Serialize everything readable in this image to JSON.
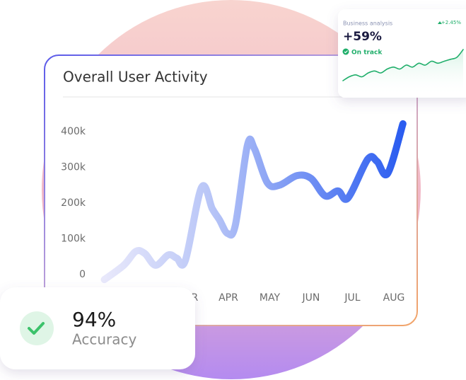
{
  "chart_data": [
    {
      "type": "line",
      "title": "Overall User Activity",
      "x": [
        0,
        0.47,
        0.76,
        0.98,
        1.24,
        1.55,
        1.75,
        1.96,
        2.35,
        2.61,
        2.78,
        2.98,
        3.17,
        3.46,
        3.63,
        3.94,
        4.23,
        4.66,
        5.0,
        5.34,
        5.65,
        5.89,
        6.37,
        6.59,
        6.85,
        7.22
      ],
      "values": [
        -14000,
        26000,
        65000,
        59000,
        26000,
        55000,
        46000,
        40000,
        244000,
        184000,
        154000,
        115000,
        139000,
        362000,
        352000,
        257000,
        250000,
        277000,
        269000,
        220000,
        234000,
        214000,
        323000,
        317000,
        283000,
        422000
      ],
      "color": "#2a5cf0",
      "xlim": [
        0,
        7.25
      ],
      "xticks": [
        {
          "value": 2,
          "label": "MAR"
        },
        {
          "value": 3,
          "label": "APR"
        },
        {
          "value": 4,
          "label": "MAY"
        },
        {
          "value": 5,
          "label": "JUN"
        },
        {
          "value": 6,
          "label": "JUL"
        },
        {
          "value": 7,
          "label": "AUG"
        }
      ],
      "ylim": [
        0,
        400000
      ],
      "yticks": [
        0,
        {
          "value": 100000,
          "label": "100k"
        },
        {
          "value": 200000,
          "label": "200k"
        },
        {
          "value": 300000,
          "label": "300k"
        },
        {
          "value": 400000,
          "label": "400k"
        }
      ],
      "grid": false
    },
    {
      "type": "line",
      "x": [
        0,
        1,
        2,
        3,
        4,
        5,
        6,
        7,
        8,
        9,
        10,
        11,
        12,
        13,
        14,
        15,
        16,
        17,
        18,
        19
      ],
      "values": [
        2,
        3,
        3.5,
        3,
        4,
        4.5,
        4,
        5,
        5.5,
        5,
        6,
        5.5,
        6.5,
        6,
        7,
        6.5,
        7,
        7.5,
        8,
        10
      ],
      "color": "#1fae6a",
      "xlim": [
        0,
        19
      ],
      "ylim": [
        0,
        10
      ]
    }
  ],
  "mini_card": {
    "label": "Business analysis",
    "headline": "+59%",
    "status": "On track",
    "change": "+2.45%"
  },
  "accuracy_card": {
    "value": "94%",
    "label": "Accuracy"
  }
}
